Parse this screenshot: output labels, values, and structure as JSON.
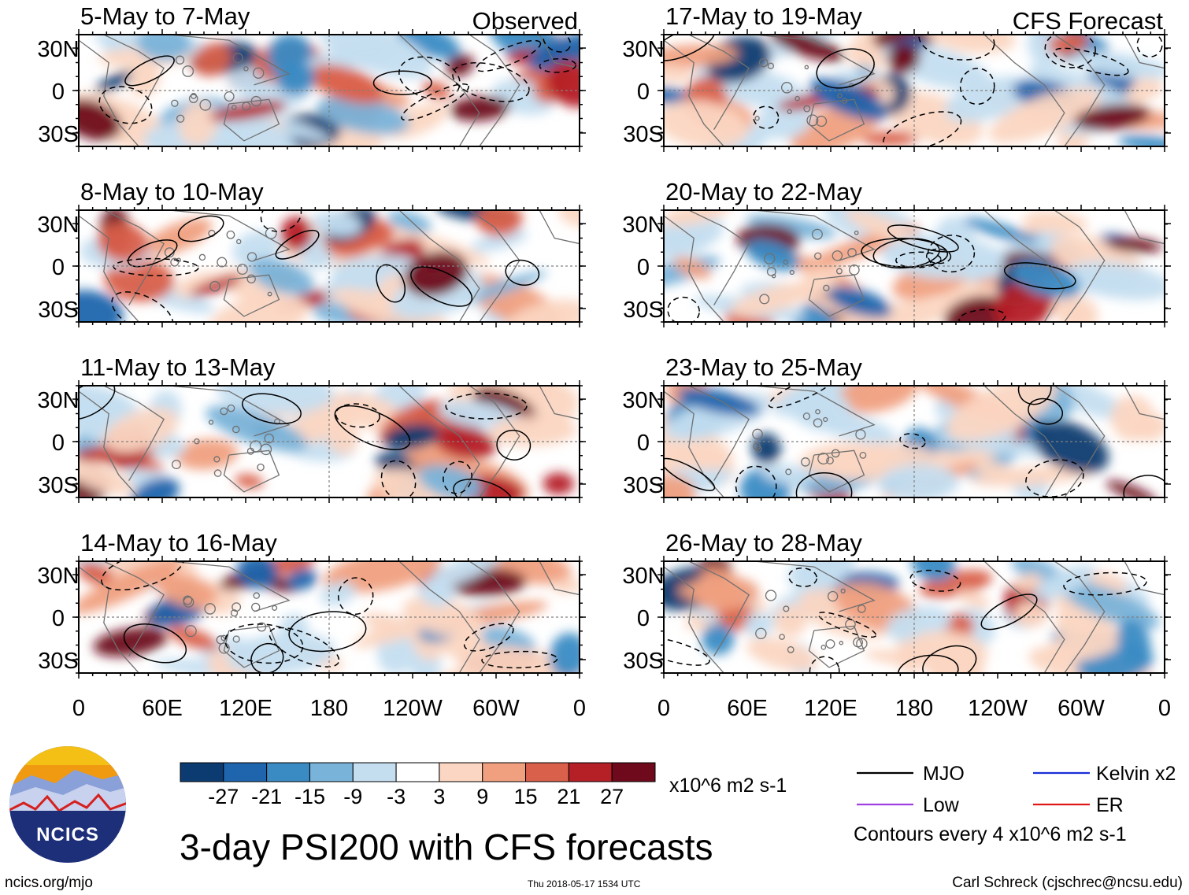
{
  "chart_data": {
    "type": "heatmap",
    "title": "3-day PSI200 with CFS forecasts",
    "units": "x10^6 m2 s-1",
    "left_column_label": "Observed",
    "right_column_label": "CFS Forecast",
    "x_ticks": [
      "0",
      "60E",
      "120E",
      "180",
      "120W",
      "60W",
      "0"
    ],
    "y_ticks": [
      "30N",
      "0",
      "30S"
    ],
    "panels": [
      {
        "period": "5-May to 7-May",
        "column": "Observed"
      },
      {
        "period": "8-May to 10-May",
        "column": "Observed"
      },
      {
        "period": "11-May to 13-May",
        "column": "Observed"
      },
      {
        "period": "14-May to 16-May",
        "column": "Observed"
      },
      {
        "period": "17-May to 19-May",
        "column": "CFS Forecast"
      },
      {
        "period": "20-May to 22-May",
        "column": "CFS Forecast"
      },
      {
        "period": "23-May to 25-May",
        "column": "CFS Forecast"
      },
      {
        "period": "26-May to 28-May",
        "column": "CFS Forecast"
      }
    ],
    "colorbar": {
      "labels": [
        "-27",
        "-21",
        "-15",
        "-9",
        "-3",
        "3",
        "9",
        "15",
        "21",
        "27"
      ],
      "colors": [
        "#0b3b70",
        "#1f65ad",
        "#3a8bc4",
        "#7ab3d9",
        "#c4def0",
        "#ffffff",
        "#fbd6c2",
        "#f0a07f",
        "#d9604a",
        "#b51f26",
        "#6e0a1b"
      ]
    },
    "legend": [
      {
        "label": "MJO",
        "color": "#000000"
      },
      {
        "label": "Kelvin x2",
        "color": "#1a2fd6"
      },
      {
        "label": "Low",
        "color": "#a040e0"
      },
      {
        "label": "ER",
        "color": "#e01818"
      }
    ],
    "contour_note": "Contours every 4 x10^6 m2 s-1"
  },
  "footer": {
    "url": "ncics.org/mjo",
    "timestamp": "Thu 2018-05-17 1534 UTC",
    "credit": "Carl Schreck (cjschrec@ncsu.edu)"
  },
  "logo": {
    "text": "NCICS"
  }
}
